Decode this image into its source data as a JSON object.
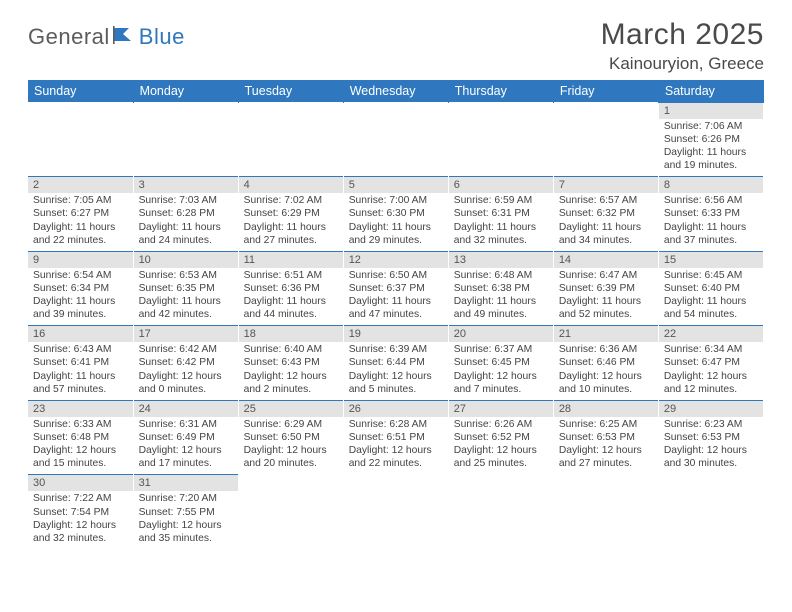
{
  "brand": {
    "part1": "General",
    "part2": "Blue"
  },
  "title": "March 2025",
  "location": "Kainouryion, Greece",
  "colors": {
    "header_bg": "#2f78bf",
    "header_text": "#ffffff",
    "daynum_bg": "#e3e3e3",
    "row_divider": "#2f78bf",
    "body_text": "#444444",
    "logo_gray": "#5c5c5c",
    "logo_blue": "#2f78bf"
  },
  "day_headers": [
    "Sunday",
    "Monday",
    "Tuesday",
    "Wednesday",
    "Thursday",
    "Friday",
    "Saturday"
  ],
  "weeks": [
    [
      null,
      null,
      null,
      null,
      null,
      null,
      {
        "n": "1",
        "sr": "Sunrise: 7:06 AM",
        "ss": "Sunset: 6:26 PM",
        "dl": "Daylight: 11 hours and 19 minutes."
      }
    ],
    [
      {
        "n": "2",
        "sr": "Sunrise: 7:05 AM",
        "ss": "Sunset: 6:27 PM",
        "dl": "Daylight: 11 hours and 22 minutes."
      },
      {
        "n": "3",
        "sr": "Sunrise: 7:03 AM",
        "ss": "Sunset: 6:28 PM",
        "dl": "Daylight: 11 hours and 24 minutes."
      },
      {
        "n": "4",
        "sr": "Sunrise: 7:02 AM",
        "ss": "Sunset: 6:29 PM",
        "dl": "Daylight: 11 hours and 27 minutes."
      },
      {
        "n": "5",
        "sr": "Sunrise: 7:00 AM",
        "ss": "Sunset: 6:30 PM",
        "dl": "Daylight: 11 hours and 29 minutes."
      },
      {
        "n": "6",
        "sr": "Sunrise: 6:59 AM",
        "ss": "Sunset: 6:31 PM",
        "dl": "Daylight: 11 hours and 32 minutes."
      },
      {
        "n": "7",
        "sr": "Sunrise: 6:57 AM",
        "ss": "Sunset: 6:32 PM",
        "dl": "Daylight: 11 hours and 34 minutes."
      },
      {
        "n": "8",
        "sr": "Sunrise: 6:56 AM",
        "ss": "Sunset: 6:33 PM",
        "dl": "Daylight: 11 hours and 37 minutes."
      }
    ],
    [
      {
        "n": "9",
        "sr": "Sunrise: 6:54 AM",
        "ss": "Sunset: 6:34 PM",
        "dl": "Daylight: 11 hours and 39 minutes."
      },
      {
        "n": "10",
        "sr": "Sunrise: 6:53 AM",
        "ss": "Sunset: 6:35 PM",
        "dl": "Daylight: 11 hours and 42 minutes."
      },
      {
        "n": "11",
        "sr": "Sunrise: 6:51 AM",
        "ss": "Sunset: 6:36 PM",
        "dl": "Daylight: 11 hours and 44 minutes."
      },
      {
        "n": "12",
        "sr": "Sunrise: 6:50 AM",
        "ss": "Sunset: 6:37 PM",
        "dl": "Daylight: 11 hours and 47 minutes."
      },
      {
        "n": "13",
        "sr": "Sunrise: 6:48 AM",
        "ss": "Sunset: 6:38 PM",
        "dl": "Daylight: 11 hours and 49 minutes."
      },
      {
        "n": "14",
        "sr": "Sunrise: 6:47 AM",
        "ss": "Sunset: 6:39 PM",
        "dl": "Daylight: 11 hours and 52 minutes."
      },
      {
        "n": "15",
        "sr": "Sunrise: 6:45 AM",
        "ss": "Sunset: 6:40 PM",
        "dl": "Daylight: 11 hours and 54 minutes."
      }
    ],
    [
      {
        "n": "16",
        "sr": "Sunrise: 6:43 AM",
        "ss": "Sunset: 6:41 PM",
        "dl": "Daylight: 11 hours and 57 minutes."
      },
      {
        "n": "17",
        "sr": "Sunrise: 6:42 AM",
        "ss": "Sunset: 6:42 PM",
        "dl": "Daylight: 12 hours and 0 minutes."
      },
      {
        "n": "18",
        "sr": "Sunrise: 6:40 AM",
        "ss": "Sunset: 6:43 PM",
        "dl": "Daylight: 12 hours and 2 minutes."
      },
      {
        "n": "19",
        "sr": "Sunrise: 6:39 AM",
        "ss": "Sunset: 6:44 PM",
        "dl": "Daylight: 12 hours and 5 minutes."
      },
      {
        "n": "20",
        "sr": "Sunrise: 6:37 AM",
        "ss": "Sunset: 6:45 PM",
        "dl": "Daylight: 12 hours and 7 minutes."
      },
      {
        "n": "21",
        "sr": "Sunrise: 6:36 AM",
        "ss": "Sunset: 6:46 PM",
        "dl": "Daylight: 12 hours and 10 minutes."
      },
      {
        "n": "22",
        "sr": "Sunrise: 6:34 AM",
        "ss": "Sunset: 6:47 PM",
        "dl": "Daylight: 12 hours and 12 minutes."
      }
    ],
    [
      {
        "n": "23",
        "sr": "Sunrise: 6:33 AM",
        "ss": "Sunset: 6:48 PM",
        "dl": "Daylight: 12 hours and 15 minutes."
      },
      {
        "n": "24",
        "sr": "Sunrise: 6:31 AM",
        "ss": "Sunset: 6:49 PM",
        "dl": "Daylight: 12 hours and 17 minutes."
      },
      {
        "n": "25",
        "sr": "Sunrise: 6:29 AM",
        "ss": "Sunset: 6:50 PM",
        "dl": "Daylight: 12 hours and 20 minutes."
      },
      {
        "n": "26",
        "sr": "Sunrise: 6:28 AM",
        "ss": "Sunset: 6:51 PM",
        "dl": "Daylight: 12 hours and 22 minutes."
      },
      {
        "n": "27",
        "sr": "Sunrise: 6:26 AM",
        "ss": "Sunset: 6:52 PM",
        "dl": "Daylight: 12 hours and 25 minutes."
      },
      {
        "n": "28",
        "sr": "Sunrise: 6:25 AM",
        "ss": "Sunset: 6:53 PM",
        "dl": "Daylight: 12 hours and 27 minutes."
      },
      {
        "n": "29",
        "sr": "Sunrise: 6:23 AM",
        "ss": "Sunset: 6:53 PM",
        "dl": "Daylight: 12 hours and 30 minutes."
      }
    ],
    [
      {
        "n": "30",
        "sr": "Sunrise: 7:22 AM",
        "ss": "Sunset: 7:54 PM",
        "dl": "Daylight: 12 hours and 32 minutes."
      },
      {
        "n": "31",
        "sr": "Sunrise: 7:20 AM",
        "ss": "Sunset: 7:55 PM",
        "dl": "Daylight: 12 hours and 35 minutes."
      },
      null,
      null,
      null,
      null,
      null
    ]
  ]
}
